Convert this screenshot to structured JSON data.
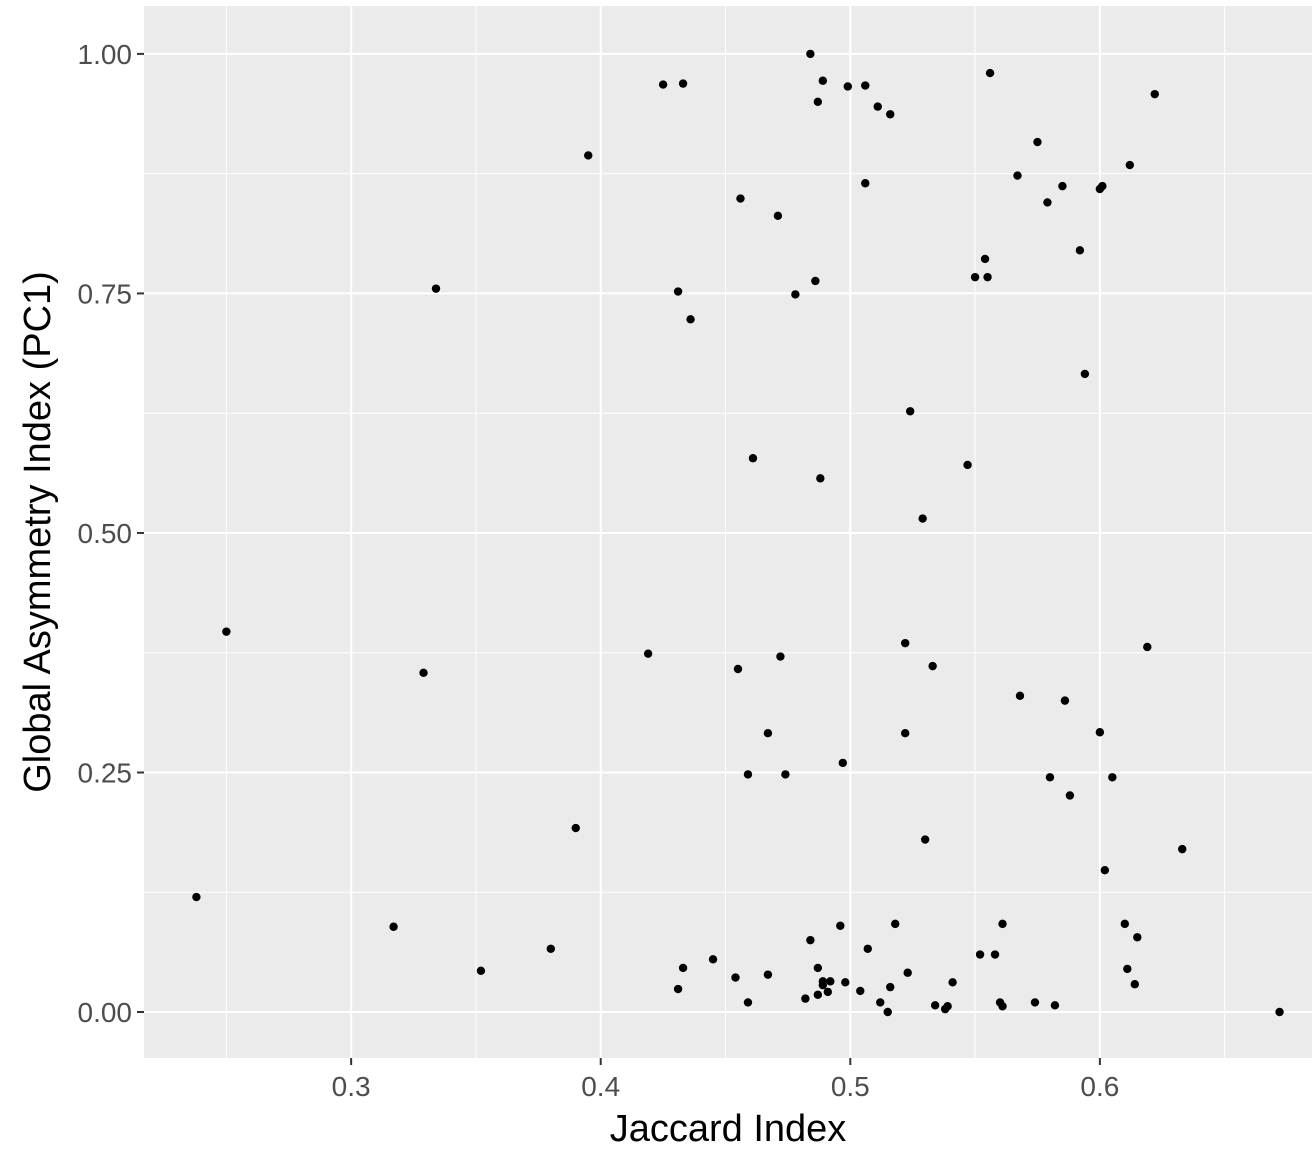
{
  "chart_data": {
    "type": "scatter",
    "xlabel": "Jaccard Index",
    "ylabel": "Global Asymmetry Index (PC1)",
    "xlim": [
      0.217,
      0.685
    ],
    "ylim": [
      -0.048,
      1.05
    ],
    "x_ticks": [
      0.3,
      0.4,
      0.5,
      0.6
    ],
    "x_tick_labels": [
      "0.3",
      "0.4",
      "0.5",
      "0.6"
    ],
    "x_minor_ticks": [
      0.25,
      0.35,
      0.45,
      0.55,
      0.65
    ],
    "y_ticks": [
      0.0,
      0.25,
      0.5,
      0.75,
      1.0
    ],
    "y_tick_labels": [
      "0.00",
      "0.25",
      "0.50",
      "0.75",
      "1.00"
    ],
    "y_minor_ticks": [
      0.125,
      0.375,
      0.625,
      0.875
    ],
    "grid": true,
    "legend": "none",
    "colors": {
      "panel": "#ebebeb",
      "grid": "#ffffff",
      "point": "#000000"
    },
    "points": [
      [
        0.484,
        1.0
      ],
      [
        0.425,
        0.968
      ],
      [
        0.433,
        0.969
      ],
      [
        0.489,
        0.972
      ],
      [
        0.499,
        0.966
      ],
      [
        0.506,
        0.967
      ],
      [
        0.556,
        0.98
      ],
      [
        0.487,
        0.95
      ],
      [
        0.511,
        0.945
      ],
      [
        0.516,
        0.937
      ],
      [
        0.622,
        0.958
      ],
      [
        0.395,
        0.894
      ],
      [
        0.575,
        0.908
      ],
      [
        0.612,
        0.884
      ],
      [
        0.567,
        0.873
      ],
      [
        0.506,
        0.865
      ],
      [
        0.585,
        0.862
      ],
      [
        0.601,
        0.862
      ],
      [
        0.6,
        0.859
      ],
      [
        0.456,
        0.849
      ],
      [
        0.579,
        0.845
      ],
      [
        0.471,
        0.831
      ],
      [
        0.592,
        0.795
      ],
      [
        0.554,
        0.786
      ],
      [
        0.55,
        0.767
      ],
      [
        0.555,
        0.767
      ],
      [
        0.486,
        0.763
      ],
      [
        0.334,
        0.755
      ],
      [
        0.431,
        0.752
      ],
      [
        0.478,
        0.749
      ],
      [
        0.436,
        0.723
      ],
      [
        0.594,
        0.666
      ],
      [
        0.524,
        0.627
      ],
      [
        0.461,
        0.578
      ],
      [
        0.547,
        0.571
      ],
      [
        0.488,
        0.557
      ],
      [
        0.529,
        0.515
      ],
      [
        0.25,
        0.397
      ],
      [
        0.522,
        0.385
      ],
      [
        0.619,
        0.381
      ],
      [
        0.419,
        0.374
      ],
      [
        0.472,
        0.371
      ],
      [
        0.533,
        0.361
      ],
      [
        0.455,
        0.358
      ],
      [
        0.329,
        0.354
      ],
      [
        0.568,
        0.33
      ],
      [
        0.586,
        0.325
      ],
      [
        0.467,
        0.291
      ],
      [
        0.522,
        0.291
      ],
      [
        0.6,
        0.292
      ],
      [
        0.497,
        0.26
      ],
      [
        0.459,
        0.248
      ],
      [
        0.474,
        0.248
      ],
      [
        0.58,
        0.245
      ],
      [
        0.605,
        0.245
      ],
      [
        0.588,
        0.226
      ],
      [
        0.39,
        0.192
      ],
      [
        0.53,
        0.18
      ],
      [
        0.633,
        0.17
      ],
      [
        0.602,
        0.148
      ],
      [
        0.238,
        0.12
      ],
      [
        0.317,
        0.089
      ],
      [
        0.518,
        0.092
      ],
      [
        0.561,
        0.092
      ],
      [
        0.496,
        0.09
      ],
      [
        0.61,
        0.092
      ],
      [
        0.615,
        0.078
      ],
      [
        0.484,
        0.075
      ],
      [
        0.38,
        0.066
      ],
      [
        0.507,
        0.066
      ],
      [
        0.552,
        0.06
      ],
      [
        0.558,
        0.06
      ],
      [
        0.445,
        0.055
      ],
      [
        0.433,
        0.046
      ],
      [
        0.487,
        0.046
      ],
      [
        0.611,
        0.045
      ],
      [
        0.352,
        0.043
      ],
      [
        0.523,
        0.041
      ],
      [
        0.467,
        0.039
      ],
      [
        0.454,
        0.036
      ],
      [
        0.492,
        0.032
      ],
      [
        0.489,
        0.032
      ],
      [
        0.498,
        0.031
      ],
      [
        0.541,
        0.031
      ],
      [
        0.614,
        0.029
      ],
      [
        0.489,
        0.028
      ],
      [
        0.491,
        0.021
      ],
      [
        0.431,
        0.024
      ],
      [
        0.504,
        0.022
      ],
      [
        0.516,
        0.026
      ],
      [
        0.487,
        0.018
      ],
      [
        0.482,
        0.014
      ],
      [
        0.459,
        0.01
      ],
      [
        0.512,
        0.01
      ],
      [
        0.534,
        0.007
      ],
      [
        0.538,
        0.003
      ],
      [
        0.539,
        0.006
      ],
      [
        0.561,
        0.006
      ],
      [
        0.56,
        0.01
      ],
      [
        0.574,
        0.01
      ],
      [
        0.582,
        0.007
      ],
      [
        0.515,
        0.0
      ],
      [
        0.672,
        0.0
      ]
    ]
  }
}
